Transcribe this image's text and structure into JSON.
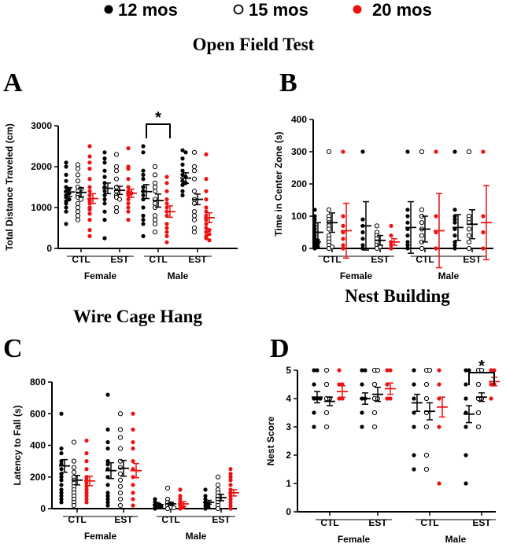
{
  "colors": {
    "mos12": "#000000",
    "mos15": "#000000",
    "mos20": "#ee1111"
  },
  "legend": [
    {
      "label": "12 mos",
      "marker": "filled-black",
      "color": "#000000"
    },
    {
      "label": "15 mos",
      "marker": "open-black",
      "color": "#000000"
    },
    {
      "label": "20 mos",
      "marker": "filled-red",
      "color": "#ee1111"
    }
  ],
  "section_titles": {
    "open_field": "Open Field Test",
    "wire_cage": "Wire Cage Hang",
    "nest_building": "Nest Building"
  },
  "chart_data": [
    {
      "panel": "A",
      "type": "scatter",
      "title": "Open Field Test",
      "ylabel": "Total Distance Traveled (cm)",
      "ylim": [
        0,
        3000
      ],
      "yticks": [
        0,
        1000,
        2000,
        3000
      ],
      "categories": [
        "CTL",
        "EST",
        "CTL",
        "EST"
      ],
      "groups": [
        "Female",
        "Male"
      ],
      "series_names": [
        "12 mos",
        "15 mos",
        "20 mos"
      ],
      "means": [
        [
          1380,
          1370,
          1220
        ],
        [
          1470,
          1420,
          1350
        ],
        [
          1390,
          1170,
          900
        ],
        [
          1720,
          1200,
          750
        ]
      ],
      "sems": [
        [
          110,
          110,
          120
        ],
        [
          130,
          100,
          100
        ],
        [
          170,
          160,
          140
        ],
        [
          130,
          130,
          120
        ]
      ],
      "points": [
        [
          [
            2100,
            2000,
            1800,
            1650,
            1500,
            1450,
            1400,
            1350,
            1300,
            1250,
            1200,
            1150,
            1100,
            1000,
            900,
            600
          ],
          [
            2050,
            1950,
            1800,
            1650,
            1500,
            1450,
            1400,
            1300,
            1250,
            1200,
            1100,
            1000,
            900,
            800,
            700
          ],
          [
            2500,
            2250,
            2100,
            1950,
            1700,
            1500,
            1400,
            1300,
            1200,
            1150,
            1100,
            1000,
            950,
            850,
            700,
            450,
            300
          ]
        ],
        [
          [
            2350,
            2200,
            2100,
            1900,
            1750,
            1600,
            1500,
            1400,
            1300,
            1200,
            1100,
            900,
            700,
            250
          ],
          [
            2300,
            2000,
            1900,
            1700,
            1500,
            1400,
            1300,
            1250,
            1200,
            1000,
            900
          ],
          [
            2450,
            2000,
            1950,
            1700,
            1500,
            1400,
            1350,
            1300,
            1200,
            1100,
            1000,
            900,
            700
          ]
        ],
        [
          [
            2500,
            2350,
            1900,
            1800,
            1700,
            1500,
            1400,
            1300,
            1200,
            1000,
            800,
            700,
            600,
            300
          ],
          [
            2000,
            1800,
            1600,
            1500,
            1400,
            1200,
            1100,
            1000,
            800,
            700,
            600,
            400
          ],
          [
            1750,
            1600,
            1400,
            1200,
            1100,
            1000,
            900,
            800,
            600,
            500,
            400,
            300,
            150
          ]
        ],
        [
          [
            2400,
            2350,
            2200,
            2050,
            1900,
            1800,
            1750,
            1650,
            1600,
            1550,
            1400,
            1300
          ],
          [
            2350,
            2000,
            1900,
            1700,
            1400,
            1200,
            1100,
            900,
            800,
            700,
            500,
            400
          ],
          [
            2300,
            1700,
            1400,
            1200,
            1000,
            900,
            800,
            700,
            600,
            500,
            450,
            400,
            350,
            300,
            250,
            200
          ]
        ]
      ],
      "significance": {
        "label": "*",
        "between": "Male CTL 12 mos vs 20 mos"
      }
    },
    {
      "panel": "B",
      "type": "scatter",
      "title": "",
      "ylabel": "Time in Center Zone (s)",
      "ylim": [
        0,
        400
      ],
      "yticks": [
        0,
        100,
        200,
        300,
        400
      ],
      "categories": [
        "CTL",
        "EST",
        "CTL",
        "EST"
      ],
      "groups": [
        "Female",
        "Male"
      ],
      "series_names": [
        "12 mos",
        "15 mos",
        "20 mos"
      ],
      "means": [
        [
          50,
          80,
          55
        ],
        [
          70,
          25,
          20
        ],
        [
          65,
          60,
          55
        ],
        [
          65,
          75,
          80
        ]
      ],
      "sems": [
        [
          30,
          30,
          85
        ],
        [
          75,
          15,
          10
        ],
        [
          80,
          40,
          115
        ],
        [
          40,
          45,
          115
        ]
      ],
      "points": [
        [
          [
            120,
            100,
            90,
            80,
            70,
            60,
            50,
            40,
            30,
            25,
            20,
            15,
            10,
            5,
            0
          ],
          [
            300,
            120,
            100,
            90,
            80,
            70,
            60,
            40,
            30,
            20,
            10,
            5,
            0
          ],
          [
            300,
            100,
            70,
            50,
            30,
            10,
            0
          ]
        ],
        [
          [
            300,
            90,
            70,
            50,
            30,
            10,
            0
          ],
          [
            70,
            50,
            40,
            30,
            20,
            10,
            5,
            0
          ],
          [
            70,
            40,
            20,
            10,
            0
          ]
        ],
        [
          [
            300,
            120,
            100,
            80,
            60,
            40,
            20,
            10,
            0
          ],
          [
            300,
            120,
            100,
            80,
            60,
            40,
            20,
            0
          ],
          [
            300,
            100,
            50,
            0
          ]
        ],
        [
          [
            300,
            120,
            100,
            90,
            80,
            60,
            40,
            20,
            10,
            0
          ],
          [
            300,
            100,
            90,
            80,
            60,
            40,
            20,
            0
          ],
          [
            300,
            100,
            50,
            0
          ]
        ]
      ]
    },
    {
      "panel": "C",
      "type": "scatter",
      "title": "Wire Cage Hang",
      "ylabel": "Latency to Fall (s)",
      "ylim": [
        0,
        800
      ],
      "yticks": [
        0,
        200,
        400,
        600,
        800
      ],
      "categories": [
        "CTL",
        "EST",
        "CTL",
        "EST"
      ],
      "groups": [
        "Female",
        "Male"
      ],
      "series_names": [
        "12 mos",
        "15 mos",
        "20 mos"
      ],
      "means": [
        [
          270,
          180,
          175
        ],
        [
          240,
          255,
          240
        ],
        [
          25,
          30,
          30
        ],
        [
          40,
          70,
          100
        ]
      ],
      "sems": [
        [
          40,
          30,
          30
        ],
        [
          50,
          50,
          45
        ],
        [
          8,
          10,
          15
        ],
        [
          12,
          20,
          20
        ]
      ],
      "points": [
        [
          [
            600,
            380,
            350,
            300,
            280,
            250,
            220,
            200,
            180,
            150,
            120,
            100,
            80,
            60,
            40
          ],
          [
            420,
            300,
            260,
            230,
            200,
            180,
            160,
            140,
            120,
            100,
            80,
            60,
            40,
            20
          ],
          [
            430,
            350,
            300,
            250,
            200,
            180,
            160,
            140,
            120,
            100,
            80,
            60,
            40
          ]
        ],
        [
          [
            720,
            500,
            420,
            380,
            300,
            280,
            250,
            200,
            150,
            100,
            80,
            60,
            40,
            20
          ],
          [
            600,
            500,
            450,
            380,
            300,
            260,
            220,
            180,
            140,
            100,
            60,
            20
          ],
          [
            600,
            500,
            420,
            380,
            300,
            250,
            200,
            150,
            100,
            60,
            20
          ]
        ],
        [
          [
            60,
            40,
            30,
            20,
            15,
            10,
            5,
            0
          ],
          [
            130,
            60,
            40,
            30,
            20,
            10,
            5,
            0
          ],
          [
            120,
            80,
            60,
            40,
            20,
            10,
            0
          ]
        ],
        [
          [
            120,
            80,
            60,
            40,
            30,
            20,
            10,
            0
          ],
          [
            200,
            150,
            120,
            100,
            80,
            60,
            40,
            20,
            0
          ],
          [
            250,
            220,
            200,
            180,
            150,
            120,
            100,
            80,
            60,
            40,
            20,
            0
          ]
        ]
      ]
    },
    {
      "panel": "D",
      "type": "scatter",
      "title": "Nest Building",
      "ylabel": "Nest Score",
      "ylim": [
        0,
        5
      ],
      "yticks": [
        0,
        1,
        2,
        3,
        4,
        5
      ],
      "categories": [
        "CTL",
        "EST",
        "CTL",
        "EST"
      ],
      "groups": [
        "Female",
        "Male"
      ],
      "series_names": [
        "12 mos",
        "15 mos",
        "20 mos"
      ],
      "means": [
        [
          4.05,
          3.9,
          4.25
        ],
        [
          4.0,
          4.15,
          4.35
        ],
        [
          3.85,
          3.55,
          3.7
        ],
        [
          3.45,
          4.05,
          4.6
        ]
      ],
      "sems": [
        [
          0.2,
          0.15,
          0.2
        ],
        [
          0.2,
          0.25,
          0.2
        ],
        [
          0.3,
          0.3,
          0.35
        ],
        [
          0.3,
          0.15,
          0.15
        ]
      ],
      "points": [
        [
          [
            5,
            5,
            4.5,
            4,
            4,
            4,
            3.5,
            3
          ],
          [
            5,
            4.5,
            4,
            4,
            3.5,
            3
          ],
          [
            5,
            4.5,
            4.5,
            4,
            4
          ]
        ],
        [
          [
            5,
            5,
            4.5,
            4,
            4,
            3.5,
            3
          ],
          [
            5,
            5,
            4.5,
            4,
            4,
            3.5,
            3
          ],
          [
            5,
            5,
            4.5,
            4,
            4
          ]
        ],
        [
          [
            5,
            4.5,
            4,
            3.5,
            3,
            2,
            1.5
          ],
          [
            5,
            5,
            4.5,
            4,
            3.5,
            3,
            2,
            1.5
          ],
          [
            5,
            4.5,
            4,
            3,
            1
          ]
        ],
        [
          [
            5,
            5,
            4.5,
            4,
            3.5,
            3,
            2,
            1
          ],
          [
            5,
            5,
            4.5,
            4,
            4,
            3.5,
            3
          ],
          [
            5,
            5,
            4.5,
            4.5,
            4
          ]
        ]
      ],
      "significance": {
        "label": "*",
        "between": "Male EST 12 mos vs 20 mos"
      }
    }
  ]
}
